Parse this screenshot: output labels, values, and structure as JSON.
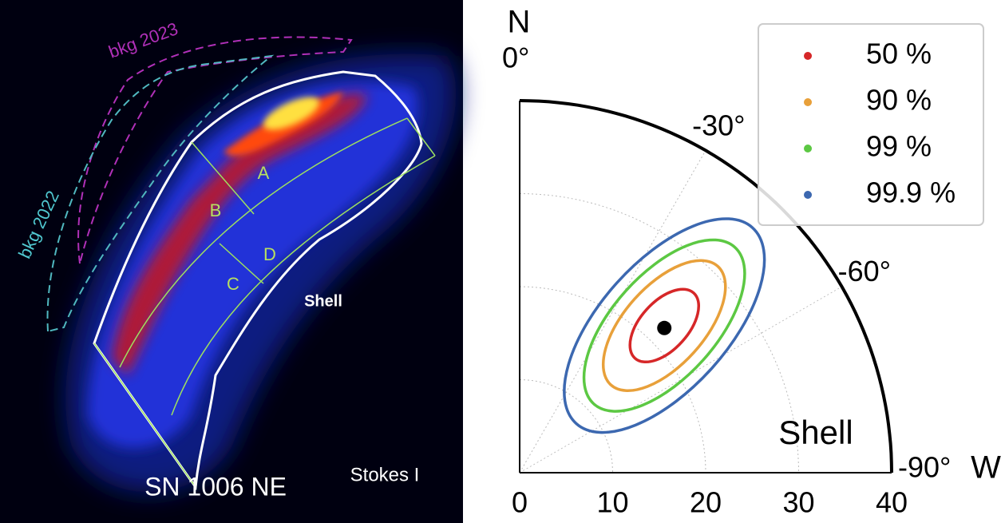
{
  "left_panel": {
    "title": "SN 1006 NE",
    "map_label": "Stokes I",
    "region_label": "Shell",
    "bkg_labels": [
      "bkg 2023",
      "bkg 2022"
    ],
    "subregions": [
      "A",
      "B",
      "C",
      "D"
    ]
  },
  "chart_data": {
    "type": "polar",
    "compass": {
      "north": "N",
      "west": "W"
    },
    "annotation": "Shell",
    "rlim": [
      0,
      40
    ],
    "rticks": [
      0,
      10,
      20,
      30,
      40
    ],
    "thetalim": [
      0,
      -90
    ],
    "thetaticks": [
      {
        "value": 0,
        "label": "0°"
      },
      {
        "value": -30,
        "label": "-30°"
      },
      {
        "value": -60,
        "label": "-60°"
      },
      {
        "value": -90,
        "label": "-90°"
      }
    ],
    "series": [
      {
        "name": "50 %",
        "color": "#d62728"
      },
      {
        "name": "90 %",
        "color": "#e8a03a"
      },
      {
        "name": "99 %",
        "color": "#5cc843"
      },
      {
        "name": "99.9 %",
        "color": "#3c68b0"
      }
    ],
    "best_fit": {
      "pd": 22,
      "pa": -45
    },
    "grid": true,
    "legend": "upper right"
  }
}
